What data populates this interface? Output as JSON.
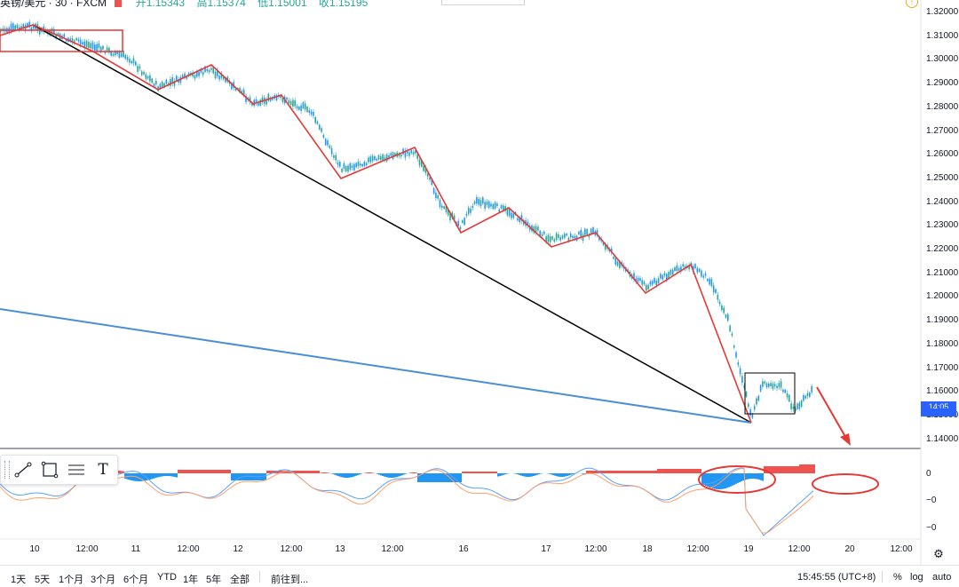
{
  "chart_header": {
    "symbol": "英镑/美元 · 30 · FXCM",
    "ohlc": {
      "open": "开1.15343",
      "high": "高1.15374",
      "low": "低1.15001",
      "close": "收1.15195"
    }
  },
  "price_axis": [
    "1.32000",
    "1.31000",
    "1.30000",
    "1.29000",
    "1.28000",
    "1.27000",
    "1.26000",
    "1.25000",
    "1.24000",
    "1.23000",
    "1.22000",
    "1.21000",
    "1.20000",
    "1.19000",
    "1.18000",
    "1.17000",
    "1.16000",
    "1.15000",
    "1.14000"
  ],
  "current_price_label": "14:05",
  "indicator_axis": [
    "0",
    "−0",
    "−0"
  ],
  "time_axis": [
    {
      "label": "10",
      "x": 39
    },
    {
      "label": "12:00",
      "x": 98
    },
    {
      "label": "11",
      "x": 153
    },
    {
      "label": "12:00",
      "x": 212
    },
    {
      "label": "12",
      "x": 268
    },
    {
      "label": "12:00",
      "x": 328
    },
    {
      "label": "13",
      "x": 383
    },
    {
      "label": "12:00",
      "x": 442
    },
    {
      "label": "16",
      "x": 522
    },
    {
      "label": "17",
      "x": 615
    },
    {
      "label": "12:00",
      "x": 671
    },
    {
      "label": "18",
      "x": 729
    },
    {
      "label": "12:00",
      "x": 786
    },
    {
      "label": "19",
      "x": 843
    },
    {
      "label": "12:00",
      "x": 900
    },
    {
      "label": "20",
      "x": 957
    },
    {
      "label": "12:00",
      "x": 1015
    }
  ],
  "timeframes": [
    "1天",
    "5天",
    "1个月",
    "3个月",
    "6个月",
    "YTD",
    "1年",
    "5年",
    "全部"
  ],
  "goto_label": "前往到...",
  "clock": "15:45:55 (UTC+8)",
  "toggles": {
    "percent": "%",
    "log": "log",
    "auto": "auto"
  },
  "drawing_tools": [
    "trend-line",
    "rectangle",
    "parallel-channel",
    "text"
  ],
  "text_tool_label": "T",
  "colors": {
    "up_candle": "#26a69a",
    "down_candle": "#2196f3",
    "zigzag": "#e53935",
    "trend_black": "#000000",
    "trend_blue": "#4a8fd6",
    "hist_pos": "#ef5350",
    "hist_neg": "#2196f3",
    "macd": "#5aa0ff",
    "signal": "#ff9f6b",
    "accent": "#2962ff"
  },
  "annotations": [
    "red-zigzag-waves",
    "black-trendline",
    "blue-trendline",
    "black-box-consolidation",
    "red-down-arrow",
    "red-ellipse-histogram",
    "red-ellipse-forecast"
  ]
}
